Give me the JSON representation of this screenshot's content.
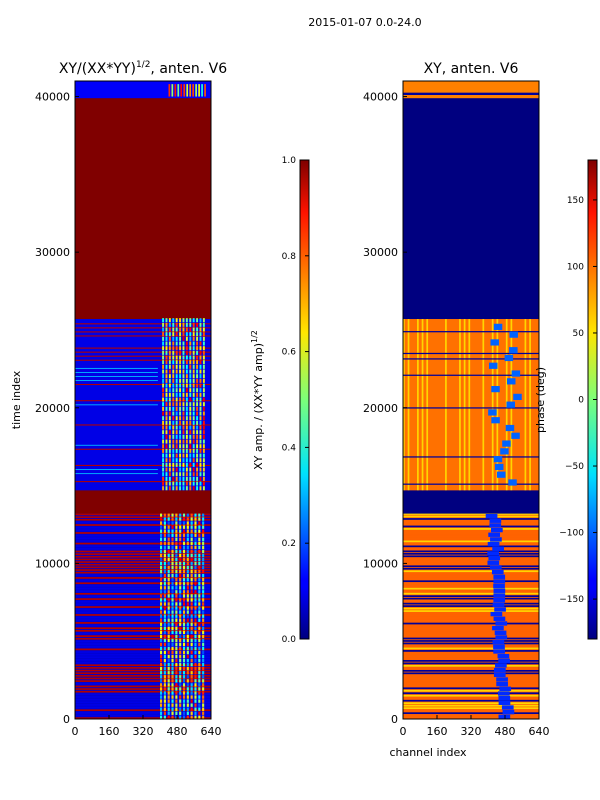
{
  "figure_title": "2015-01-07 0.0-24.0",
  "chart_data": [
    {
      "type": "heatmap",
      "title_main": "XY/(XX*YY)",
      "title_sup": "1/2",
      "title_tail": ", anten. V6",
      "xlabel": "",
      "ylabel": "time index",
      "xlim": [
        0,
        640
      ],
      "ylim": [
        0,
        41000
      ],
      "x_ticks": [
        0,
        160,
        320,
        480,
        640
      ],
      "y_ticks": [
        0,
        10000,
        20000,
        30000,
        40000
      ],
      "colorbar": {
        "cmap": "jet",
        "vmin": 0.0,
        "vmax": 1.0,
        "ticks": [
          "0.0",
          "0.2",
          "0.4",
          "0.6",
          "0.8",
          "1.0"
        ],
        "label_main": "XY amp. / (XX*YY amp)",
        "label_sup": "1/2"
      },
      "regions": [
        {
          "t_start": 0,
          "t_end": 13200,
          "value_desc": "mixed, mostly low with scattered high"
        },
        {
          "t_start": 13200,
          "t_end": 14700,
          "value": 1.0
        },
        {
          "t_start": 14700,
          "t_end": 25700,
          "value_desc": "mixed, low with high stripes"
        },
        {
          "t_start": 25700,
          "t_end": 39900,
          "value": 1.0
        },
        {
          "t_start": 39900,
          "t_end": 41000,
          "value_desc": "mixed"
        }
      ]
    },
    {
      "type": "heatmap",
      "title_main": "XY, anten. V6",
      "xlabel": "channel index",
      "ylabel": "",
      "xlim": [
        0,
        640
      ],
      "ylim": [
        0,
        41000
      ],
      "x_ticks": [
        0,
        160,
        320,
        480,
        640
      ],
      "y_ticks": [
        0,
        10000,
        20000,
        30000,
        40000
      ],
      "colorbar": {
        "cmap": "jet",
        "vmin": -180,
        "vmax": 180,
        "ticks": [
          "150",
          "100",
          "50",
          "0",
          "−50",
          "−100",
          "−150"
        ],
        "tick_values": [
          150,
          100,
          50,
          0,
          -50,
          -100,
          -150
        ],
        "label": "phase (deg)"
      },
      "regions": [
        {
          "t_start": 0,
          "t_end": 13200,
          "value_desc": "mixed phase, orange/yellow with blue stripes"
        },
        {
          "t_start": 13200,
          "t_end": 14700,
          "value": -180
        },
        {
          "t_start": 14700,
          "t_end": 25700,
          "value_desc": "mostly orange (~100 deg)"
        },
        {
          "t_start": 25700,
          "t_end": 39900,
          "value": -180
        },
        {
          "t_start": 39900,
          "t_end": 41000,
          "value_desc": "mixed"
        }
      ]
    }
  ]
}
